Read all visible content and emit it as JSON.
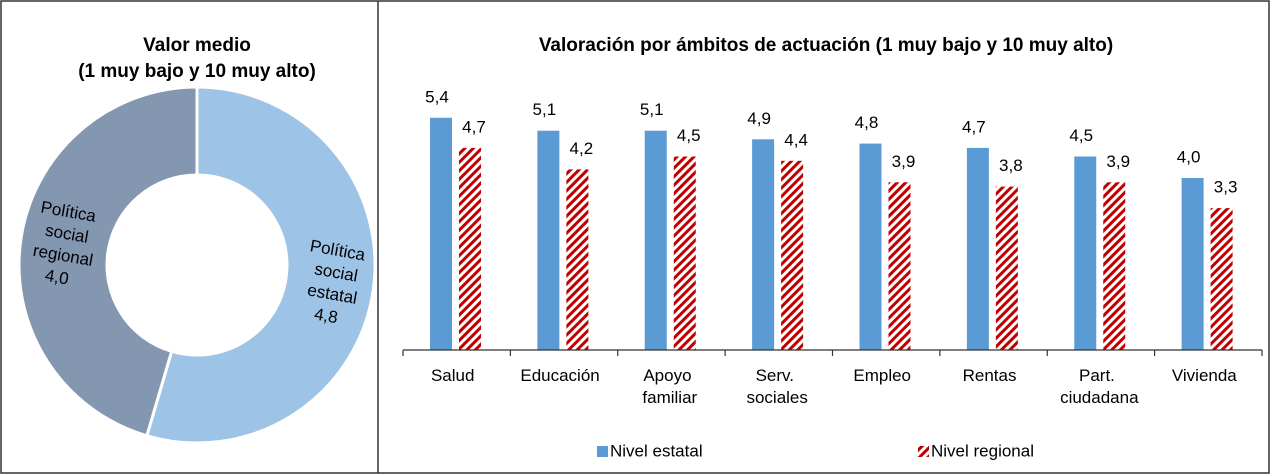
{
  "chart_data": [
    {
      "type": "donut",
      "title": "Valor medio",
      "subtitle": "(1 muy bajo y 10 muy alto)",
      "categories": [
        "Política social estatal",
        "Política social regional"
      ],
      "values": [
        4.8,
        4.0
      ],
      "value_labels": [
        "4,8",
        "4,0"
      ],
      "colors": [
        "#9dc3e6",
        "#8497b0"
      ]
    },
    {
      "type": "bar",
      "title": "Valoración por ámbitos de actuación (1 muy bajo y 10 muy alto)",
      "categories": [
        "Salud",
        "Educación",
        "Apoyo familiar",
        "Serv. sociales",
        "Empleo",
        "Rentas",
        "Part. ciudadana",
        "Vivienda"
      ],
      "series": [
        {
          "name": "Nivel estatal",
          "color": "#5b9bd5",
          "values": [
            5.4,
            5.1,
            5.1,
            4.9,
            4.8,
            4.7,
            4.5,
            4.0
          ],
          "value_labels": [
            "5,4",
            "5,1",
            "5,1",
            "4,9",
            "4,8",
            "4,7",
            "4,5",
            "4,0"
          ]
        },
        {
          "name": "Nivel regional",
          "color": "#c00000",
          "values": [
            4.7,
            4.2,
            4.5,
            4.4,
            3.9,
            3.8,
            3.9,
            3.3
          ],
          "value_labels": [
            "4,7",
            "4,2",
            "4,5",
            "4,4",
            "3,9",
            "3,8",
            "3,9",
            "3,3"
          ]
        }
      ],
      "ylim": [
        0,
        6
      ]
    }
  ]
}
